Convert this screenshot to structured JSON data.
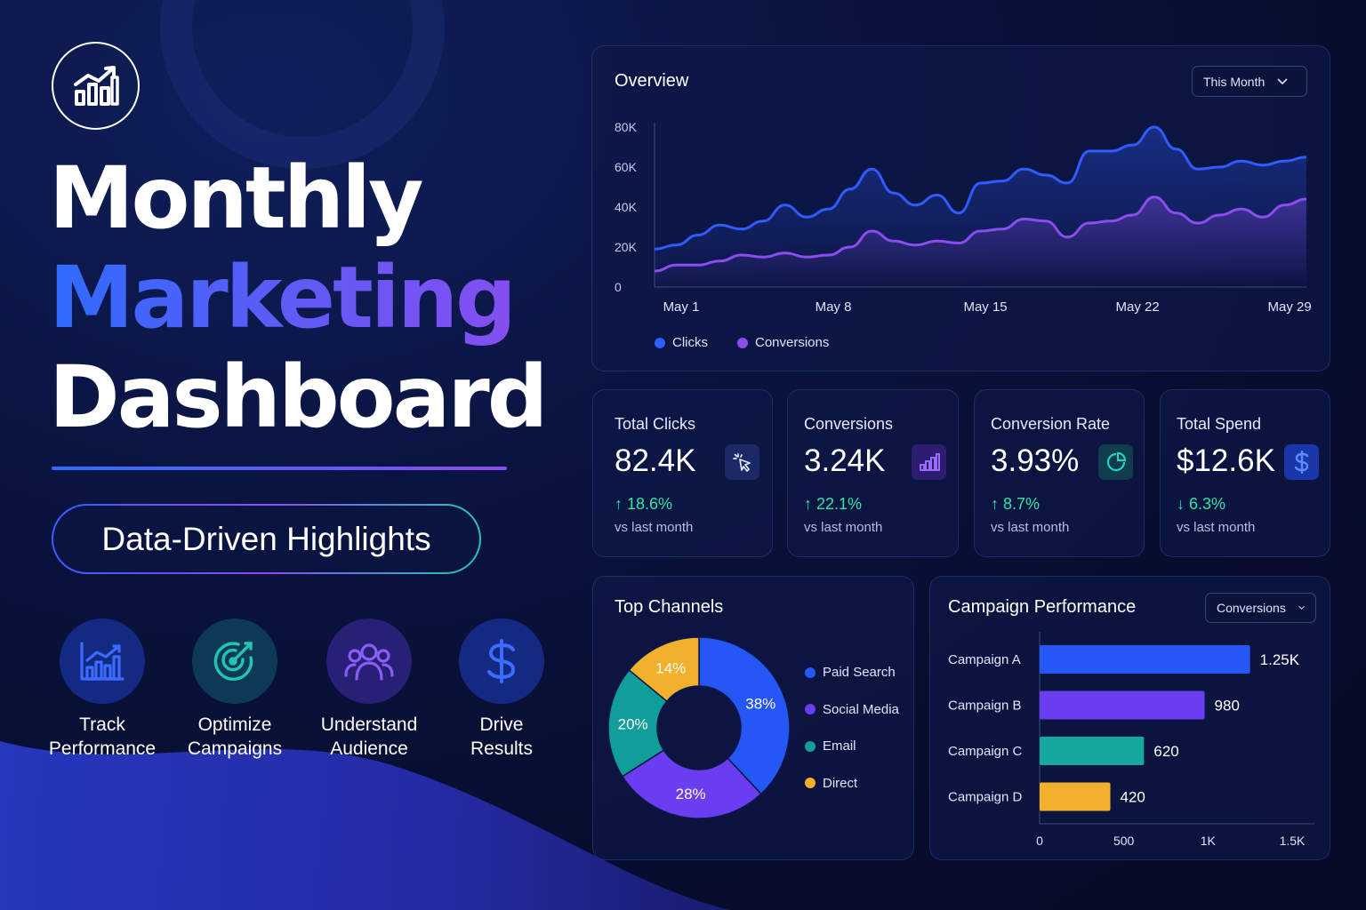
{
  "hero": {
    "title_line1": "Monthly",
    "title_line2": "Marketing",
    "title_line3": "Dashboard",
    "pill": "Data-Driven Highlights",
    "logo_icon": "bar-chart-growth-icon"
  },
  "features": [
    {
      "label": "Track\nPerformance",
      "icon": "line-chart-icon",
      "color": "#3b6bff"
    },
    {
      "label": "Optimize\nCampaigns",
      "icon": "target-icon",
      "color": "#22c5b5"
    },
    {
      "label": "Understand\nAudience",
      "icon": "users-icon",
      "color": "#8b5cf6"
    },
    {
      "label": "Drive\nResults",
      "icon": "dollar-icon",
      "color": "#3b6bff"
    }
  ],
  "overview": {
    "title": "Overview",
    "range_select": "This Month",
    "legend": [
      {
        "name": "Clicks",
        "color": "#2f5bff"
      },
      {
        "name": "Conversions",
        "color": "#8b4cf0"
      }
    ]
  },
  "chart_data": {
    "type": "line",
    "title": "Overview",
    "xlabel": "",
    "ylabel": "",
    "x_ticks": [
      "May 1",
      "May 8",
      "May 15",
      "May 22",
      "May 29"
    ],
    "y_ticks": [
      "80K",
      "60K",
      "40K",
      "20K",
      "0"
    ],
    "ylim": [
      0,
      80000
    ],
    "x": [
      1,
      2,
      3,
      4,
      5,
      6,
      7,
      8,
      9,
      10,
      11,
      12,
      13,
      14,
      15,
      16,
      17,
      18,
      19,
      20,
      21,
      22,
      23,
      24,
      25,
      26,
      27,
      28,
      29,
      30,
      31
    ],
    "series": [
      {
        "name": "Clicks",
        "values": [
          19000,
          21000,
          26000,
          31000,
          29000,
          33000,
          41000,
          35000,
          39000,
          49000,
          59000,
          47000,
          41000,
          46000,
          37000,
          52000,
          53000,
          59000,
          56000,
          52000,
          68000,
          68000,
          71000,
          80000,
          69000,
          59000,
          60000,
          63000,
          61000,
          63000,
          65000
        ]
      },
      {
        "name": "Conversions",
        "values": [
          8000,
          11000,
          11000,
          13000,
          16000,
          15000,
          17000,
          15000,
          16000,
          20000,
          28000,
          23000,
          21000,
          23000,
          22000,
          28000,
          29000,
          34000,
          33000,
          25000,
          32000,
          33000,
          36000,
          45000,
          37000,
          32000,
          36000,
          39000,
          35000,
          41000,
          44000
        ]
      }
    ],
    "grid": false,
    "legend": "bottom-left"
  },
  "kpis": [
    {
      "label": "Total Clicks",
      "value": "82.4K",
      "delta": "↑ 18.6%",
      "delta_color": "#2ee6a6",
      "sub": "vs last month",
      "icon": "cursor-click-icon",
      "icon_bg": "#1b2a66",
      "icon_color": "#e6e9ff"
    },
    {
      "label": "Conversions",
      "value": "3.24K",
      "delta": "↑ 22.1%",
      "delta_color": "#2ee6a6",
      "sub": "vs last month",
      "icon": "bar-chart-icon",
      "icon_bg": "#2d1d70",
      "icon_color": "#9a6bff"
    },
    {
      "label": "Conversion Rate",
      "value": "3.93%",
      "delta": "↑ 8.7%",
      "delta_color": "#2ee6a6",
      "sub": "vs last month",
      "icon": "pie-chart-icon",
      "icon_bg": "#0f3d4e",
      "icon_color": "#22d3c0"
    },
    {
      "label": "Total Spend",
      "value": "$12.6K",
      "delta": "↓ 6.3%",
      "delta_color": "#2ee6a6",
      "sub": "vs last month",
      "icon": "dollar-icon",
      "icon_bg": "#1a36a8",
      "icon_color": "#5a8cff"
    }
  ],
  "channels": {
    "title": "Top Channels",
    "chart": {
      "type": "pie",
      "slices": [
        {
          "name": "Paid Search",
          "value": 38,
          "label": "38%",
          "color": "#2457f5"
        },
        {
          "name": "Social Media",
          "value": 28,
          "label": "28%",
          "color": "#6a3ef0"
        },
        {
          "name": "Email",
          "value": 20,
          "label": "20%",
          "color": "#109e9a"
        },
        {
          "name": "Direct",
          "value": 14,
          "label": "14%",
          "color": "#f2b12c"
        }
      ]
    }
  },
  "campaigns": {
    "title": "Campaign Performance",
    "metric_select": "Conversions",
    "chart": {
      "type": "bar",
      "orientation": "horizontal",
      "categories": [
        "Campaign A",
        "Campaign B",
        "Campaign C",
        "Campaign D"
      ],
      "values": [
        1250,
        980,
        620,
        420
      ],
      "value_labels": [
        "1.25K",
        "980",
        "620",
        "420"
      ],
      "colors": [
        "#2457f5",
        "#6a3ef0",
        "#14a89e",
        "#f2b12c"
      ],
      "x_ticks": [
        "0",
        "500",
        "1K",
        "1.5K"
      ],
      "xlim": [
        0,
        1500
      ]
    }
  }
}
